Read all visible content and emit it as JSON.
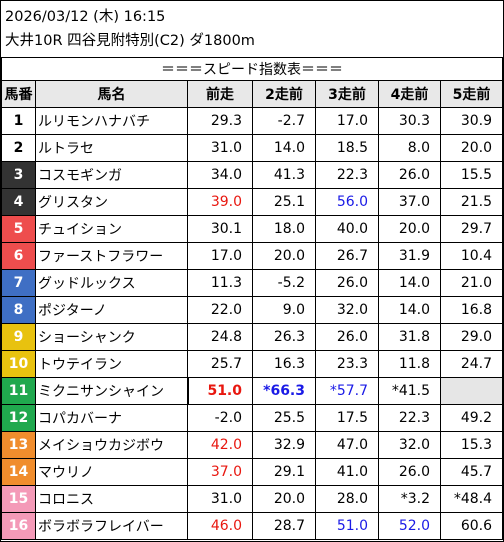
{
  "header": {
    "line1": "2026/03/12 (木) 16:15",
    "line2": "大井10R 四谷見附特別(C2) ダ1800m"
  },
  "table_title": "＝＝＝スピード指数表＝＝＝",
  "columns": [
    "馬番",
    "馬名",
    "前走",
    "2走前",
    "3走前",
    "4走前",
    "5走前"
  ],
  "colors": {
    "waku1": "#ffffff",
    "waku2": "#ffffff",
    "waku3": "#333333",
    "waku4": "#333333",
    "waku5": "#ee4d4d",
    "waku6": "#ee4d4d",
    "waku7": "#3f6fc4",
    "waku8": "#3f6fc4",
    "waku9": "#e8c20f",
    "waku10": "#e8c20f",
    "waku11": "#20a84e",
    "waku12": "#20a84e",
    "waku13": "#f08d2d",
    "waku14": "#f08d2d",
    "waku15": "#f49ab8",
    "waku16": "#f49ab8"
  },
  "rows": [
    {
      "no": "1",
      "name": "ルリモンハナバチ",
      "r1": "29.3",
      "r2": "-2.7",
      "r3": "17.0",
      "r4": "30.3",
      "r5": "30.9"
    },
    {
      "no": "2",
      "name": "ルトラセ",
      "r1": "31.0",
      "r2": "14.0",
      "r3": "18.5",
      "r4": "8.0",
      "r5": "20.0"
    },
    {
      "no": "3",
      "name": "コスモギンガ",
      "r1": "34.0",
      "r2": "41.3",
      "r3": "22.3",
      "r4": "26.0",
      "r5": "15.5"
    },
    {
      "no": "4",
      "name": "グリスタン",
      "r1": "39.0",
      "r2": "25.1",
      "r3": "56.0",
      "r4": "37.0",
      "r5": "21.5"
    },
    {
      "no": "5",
      "name": "チュイション",
      "r1": "30.1",
      "r2": "18.0",
      "r3": "40.0",
      "r4": "20.0",
      "r5": "29.7"
    },
    {
      "no": "6",
      "name": "ファーストフラワー",
      "r1": "17.0",
      "r2": "20.0",
      "r3": "26.7",
      "r4": "31.9",
      "r5": "10.4"
    },
    {
      "no": "7",
      "name": "グッドルックス",
      "r1": "11.3",
      "r2": "-5.2",
      "r3": "26.0",
      "r4": "14.0",
      "r5": "21.0"
    },
    {
      "no": "8",
      "name": "ポジターノ",
      "r1": "22.0",
      "r2": "9.0",
      "r3": "32.0",
      "r4": "14.0",
      "r5": "16.8"
    },
    {
      "no": "9",
      "name": "ショーシャンク",
      "r1": "24.8",
      "r2": "26.3",
      "r3": "26.0",
      "r4": "31.8",
      "r5": "29.0"
    },
    {
      "no": "10",
      "name": "トウテイラン",
      "r1": "25.7",
      "r2": "16.3",
      "r3": "23.3",
      "r4": "11.8",
      "r5": "24.7"
    },
    {
      "no": "11",
      "name": "ミクニサンシャイン",
      "r1": "51.0",
      "r2": "*66.3",
      "r3": "*57.7",
      "r4": "*41.5",
      "r5": ""
    },
    {
      "no": "12",
      "name": "コパカバーナ",
      "r1": "-2.0",
      "r2": "25.5",
      "r3": "17.5",
      "r4": "22.3",
      "r5": "49.2"
    },
    {
      "no": "13",
      "name": "メイショウカジボウ",
      "r1": "42.0",
      "r2": "32.9",
      "r3": "47.0",
      "r4": "32.0",
      "r5": "15.3"
    },
    {
      "no": "14",
      "name": "マウリノ",
      "r1": "37.0",
      "r2": "29.1",
      "r3": "41.0",
      "r4": "26.0",
      "r5": "45.7"
    },
    {
      "no": "15",
      "name": "コロニス",
      "r1": "31.0",
      "r2": "20.0",
      "r3": "28.0",
      "r4": "*3.2",
      "r5": "*48.4"
    },
    {
      "no": "16",
      "name": "ボラボラフレイバー",
      "r1": "46.0",
      "r2": "28.7",
      "r3": "51.0",
      "r4": "52.0",
      "r5": "60.6"
    }
  ]
}
